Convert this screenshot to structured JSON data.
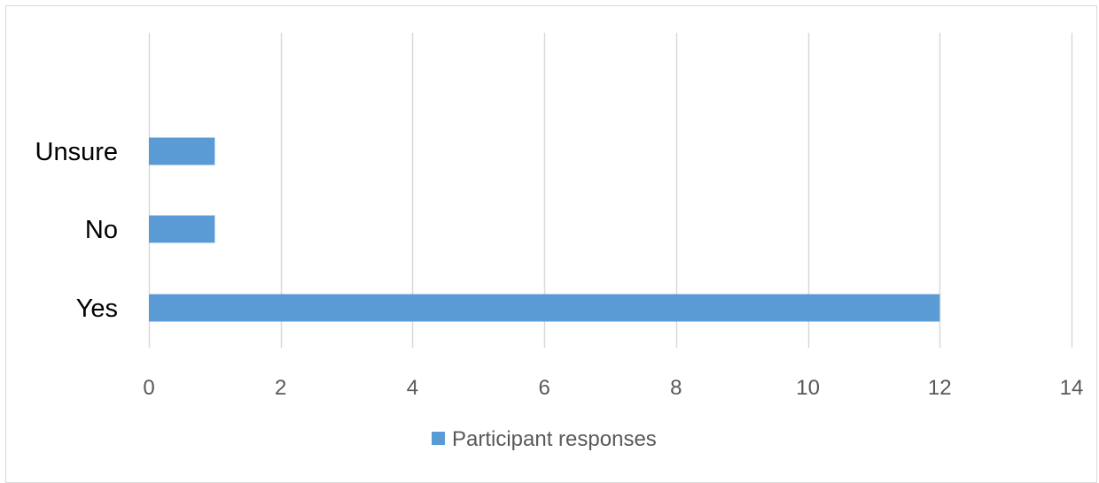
{
  "chart_data": {
    "type": "bar",
    "orientation": "horizontal",
    "categories": [
      "Yes",
      "No",
      "Unsure"
    ],
    "series": [
      {
        "name": "Participant responses",
        "values": [
          12,
          1,
          1
        ],
        "color": "#5b9bd5"
      }
    ],
    "xlim": [
      0,
      14
    ],
    "x_ticks": [
      0,
      2,
      4,
      6,
      8,
      10,
      12,
      14
    ],
    "grid": true,
    "legend_position": "bottom",
    "title": "",
    "xlabel": "",
    "ylabel": ""
  }
}
